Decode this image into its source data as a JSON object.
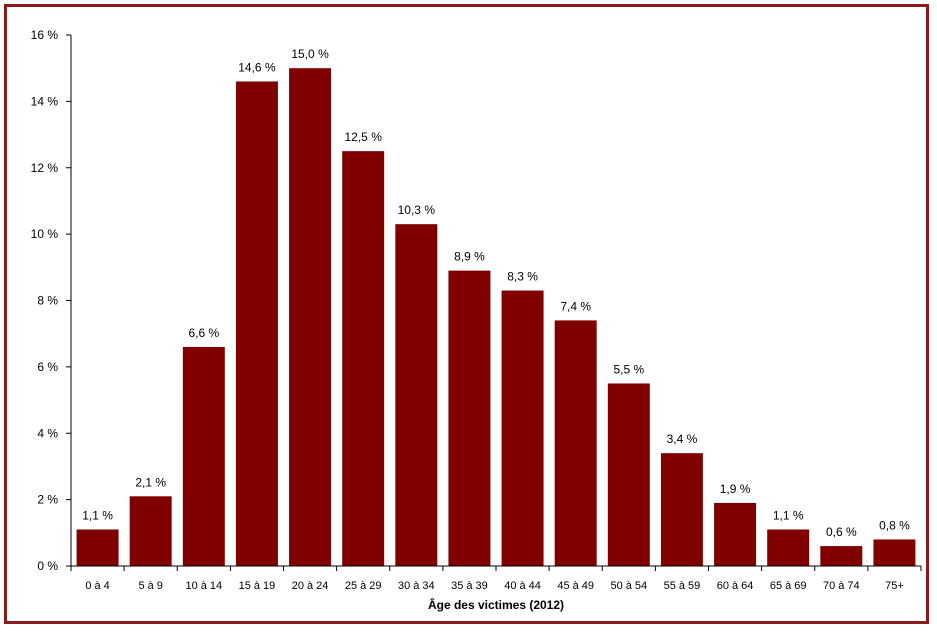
{
  "chart_data": {
    "type": "bar",
    "title": "",
    "xlabel": "Âge des victimes (2012)",
    "ylabel": "",
    "ylim": [
      0,
      16
    ],
    "yticks": [
      0,
      2,
      4,
      6,
      8,
      10,
      12,
      14,
      16
    ],
    "ytick_labels": [
      "0 %",
      "2 %",
      "4 %",
      "6 %",
      "8 %",
      "10 %",
      "12 %",
      "14 %",
      "16 %"
    ],
    "grid": false,
    "bar_color": "#800000",
    "frame_color": "#8b1a1a",
    "categories": [
      "0 à 4",
      "5 à 9",
      "10 à 14",
      "15 à 19",
      "20 à 24",
      "25 à 29",
      "30 à 34",
      "35 à 39",
      "40 à 44",
      "45 à 49",
      "50 à 54",
      "55 à 59",
      "60 à 64",
      "65 à 69",
      "70 à 74",
      "75+"
    ],
    "values": [
      1.1,
      2.1,
      6.6,
      14.6,
      15.0,
      12.5,
      10.3,
      8.9,
      8.3,
      7.4,
      5.5,
      3.4,
      1.9,
      1.1,
      0.6,
      0.8
    ],
    "data_labels": [
      "1,1 %",
      "2,1 %",
      "6,6 %",
      "14,6 %",
      "15,0 %",
      "12,5 %",
      "10,3 %",
      "8,9 %",
      "8,3 %",
      "7,4 %",
      "5,5 %",
      "3,4 %",
      "1,9 %",
      "1,1 %",
      "0,6 %",
      "0,8 %"
    ]
  }
}
